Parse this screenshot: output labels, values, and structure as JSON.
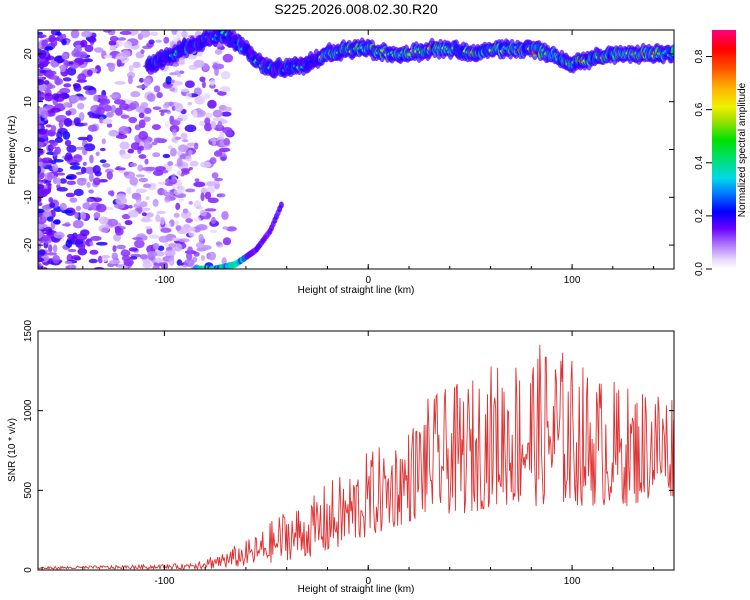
{
  "title": "S225.2026.008.02.30.R20",
  "chart_data": [
    {
      "type": "heatmap",
      "name": "spectrogram",
      "xlabel": "Height of straight line (km)",
      "ylabel": "Frequency (Hz)",
      "xlim": [
        -162,
        150
      ],
      "ylim": [
        -25,
        25
      ],
      "xticks": [
        -100,
        0,
        100
      ],
      "yticks": [
        -20,
        -10,
        0,
        10,
        20
      ],
      "colorbar": {
        "label": "Normalized spectral amplitude",
        "range": [
          0,
          0.9
        ],
        "ticks": [
          0.0,
          0.2,
          0.4,
          0.6,
          0.8
        ],
        "tick_labels": [
          "0.0",
          "0.2",
          "0.4",
          "0.6",
          "0.8"
        ]
      },
      "features": {
        "main_trace_x": [
          -105,
          -95,
          -80,
          -70,
          -60,
          -50,
          -40,
          -30,
          -20,
          -10,
          0,
          10,
          20,
          30,
          40,
          50,
          60,
          70,
          80,
          90,
          100,
          110,
          120,
          130,
          140,
          150
        ],
        "main_trace_y": [
          18,
          20,
          23,
          24,
          21,
          17,
          17,
          18,
          20,
          21,
          21,
          20,
          20,
          21,
          21,
          20,
          21,
          21,
          21,
          20,
          18,
          19,
          20,
          20,
          20,
          20
        ],
        "low_trace_x": [
          -85,
          -75,
          -65,
          -55,
          -48,
          -42
        ],
        "low_trace_y": [
          -25,
          -25,
          -24,
          -21,
          -17,
          -11
        ]
      }
    },
    {
      "type": "line",
      "name": "snr",
      "xlabel": "Height of straight line (km)",
      "ylabel": "SNR (10 * v/v)",
      "xlim": [
        -162,
        150
      ],
      "ylim": [
        0,
        1500
      ],
      "xticks": [
        -100,
        0,
        100
      ],
      "yticks": [
        0,
        500,
        1000,
        1500
      ],
      "color": "#e03030",
      "envelope_x": [
        -162,
        -120,
        -90,
        -70,
        -55,
        -40,
        -30,
        -20,
        -10,
        0,
        10,
        20,
        30,
        40,
        50,
        60,
        70,
        80,
        90,
        100,
        110,
        120,
        130,
        140,
        150
      ],
      "envelope_hi": [
        20,
        30,
        40,
        120,
        220,
        400,
        420,
        560,
        620,
        750,
        800,
        900,
        1100,
        1150,
        1200,
        1300,
        1350,
        1400,
        1450,
        1350,
        1250,
        1200,
        1150,
        1200,
        1150
      ],
      "envelope_lo": [
        0,
        0,
        0,
        10,
        30,
        60,
        80,
        100,
        150,
        200,
        250,
        300,
        350,
        350,
        350,
        400,
        400,
        400,
        400,
        400,
        400,
        400,
        400,
        450,
        450
      ]
    }
  ]
}
